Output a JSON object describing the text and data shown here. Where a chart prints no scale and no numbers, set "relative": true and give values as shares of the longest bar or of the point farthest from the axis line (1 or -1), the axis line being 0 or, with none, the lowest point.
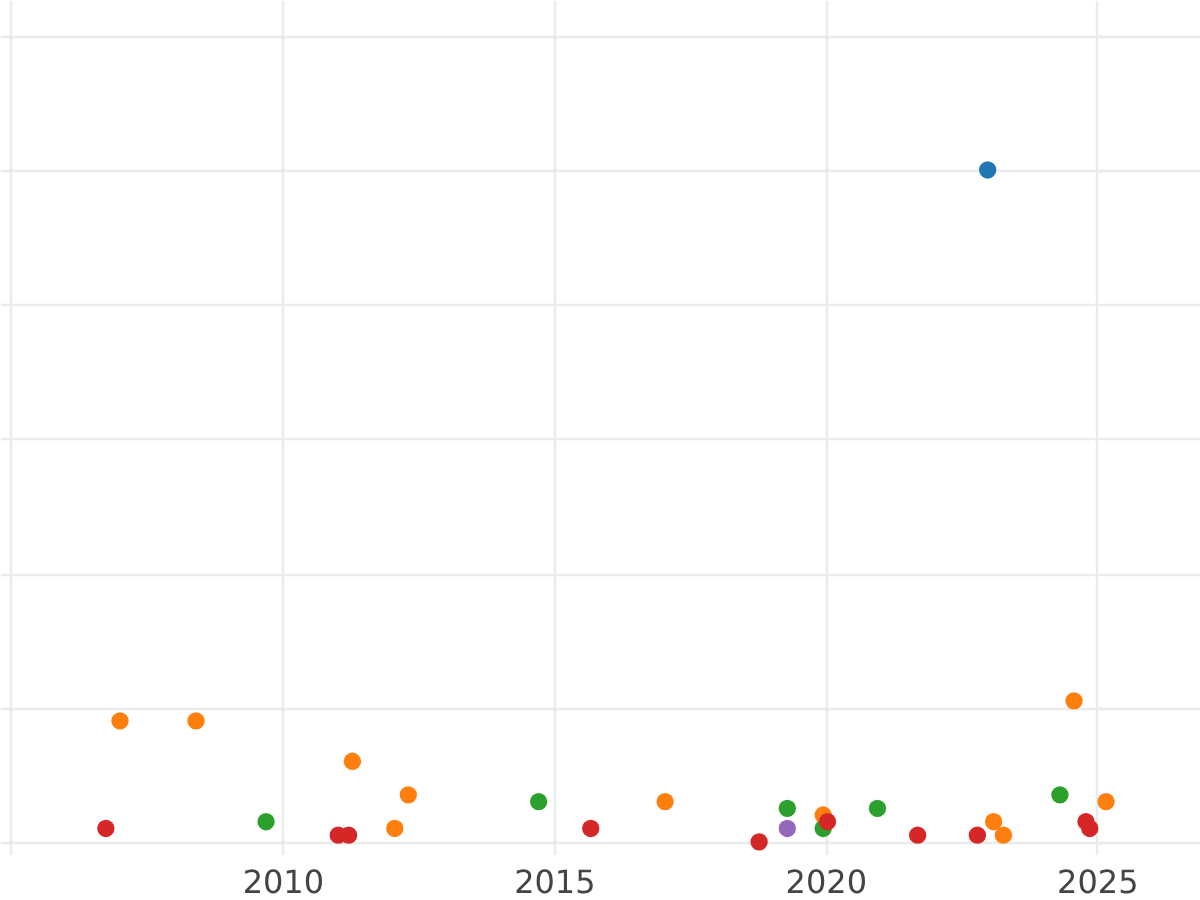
{
  "chart_data": {
    "type": "scatter",
    "relative": true,
    "grid": true,
    "marker": "circle",
    "xlim": [
      2004.8,
      2026.9
    ],
    "xticks": [
      {
        "value": 2005,
        "label": null
      },
      2010,
      2015,
      2020,
      2025
    ],
    "series": [
      {
        "color": "#1f77b4",
        "x": [
          2022.99
        ],
        "values": [
          1
        ]
      },
      {
        "color": "#ff7f0e",
        "x": [
          2007.01,
          2008.41,
          2011.29,
          2012.32,
          2012.07,
          2017.05,
          2019.96,
          2023.1,
          2023.28,
          2024.58,
          2025.17
        ],
        "values": [
          0.18,
          0.18,
          0.12,
          0.07,
          0.02,
          0.06,
          0.04,
          0.03,
          0.01,
          0.21,
          0.06
        ]
      },
      {
        "color": "#2ca02c",
        "x": [
          2009.7,
          2014.72,
          2019.3,
          2019.96,
          2020.96,
          2024.32
        ],
        "values": [
          0.03,
          0.06,
          0.05,
          0.02,
          0.05,
          0.07
        ]
      },
      {
        "color": "#d62728",
        "x": [
          2006.75,
          2011.03,
          2011.22,
          2015.68,
          2018.78,
          2020.04,
          2021.7,
          2022.8,
          2024.8,
          2024.87
        ],
        "values": [
          0.02,
          0.01,
          0.01,
          0.02,
          0,
          0.03,
          0.01,
          0.01,
          0.03,
          0.02
        ]
      },
      {
        "color": "#9467bd",
        "x": [
          2019.3
        ],
        "values": [
          0.02
        ]
      }
    ]
  }
}
